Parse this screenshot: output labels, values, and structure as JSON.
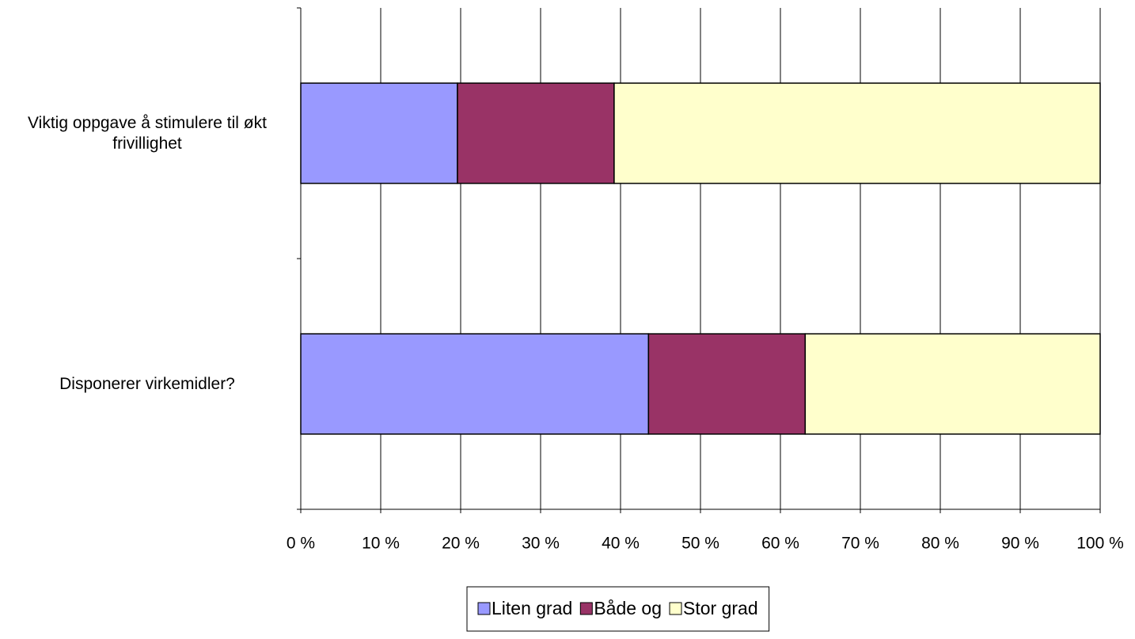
{
  "chart_data": {
    "type": "stacked-bar-horizontal",
    "categories": [
      "Viktig oppgave å stimulere til økt frivillighet",
      "Disponerer virkemidler?"
    ],
    "series": [
      {
        "name": "Liten grad",
        "color": "#9999ff",
        "values": [
          19.6,
          43.5
        ]
      },
      {
        "name": "Både og",
        "color": "#993366",
        "values": [
          19.6,
          19.6
        ]
      },
      {
        "name": "Stor grad",
        "color": "#ffffcc",
        "values": [
          60.8,
          36.9
        ]
      }
    ],
    "xlim": [
      0,
      100
    ],
    "xticks": [
      {
        "value": 0,
        "label": "0 %"
      },
      {
        "value": 10,
        "label": "10 %"
      },
      {
        "value": 20,
        "label": "20 %"
      },
      {
        "value": 30,
        "label": "30 %"
      },
      {
        "value": 40,
        "label": "40 %"
      },
      {
        "value": 50,
        "label": "50 %"
      },
      {
        "value": 60,
        "label": "60 %"
      },
      {
        "value": 70,
        "label": "70 %"
      },
      {
        "value": 80,
        "label": "80 %"
      },
      {
        "value": 90,
        "label": "90 %"
      },
      {
        "value": 100,
        "label": "100 %"
      }
    ],
    "grid": true,
    "legend": "bottom"
  }
}
